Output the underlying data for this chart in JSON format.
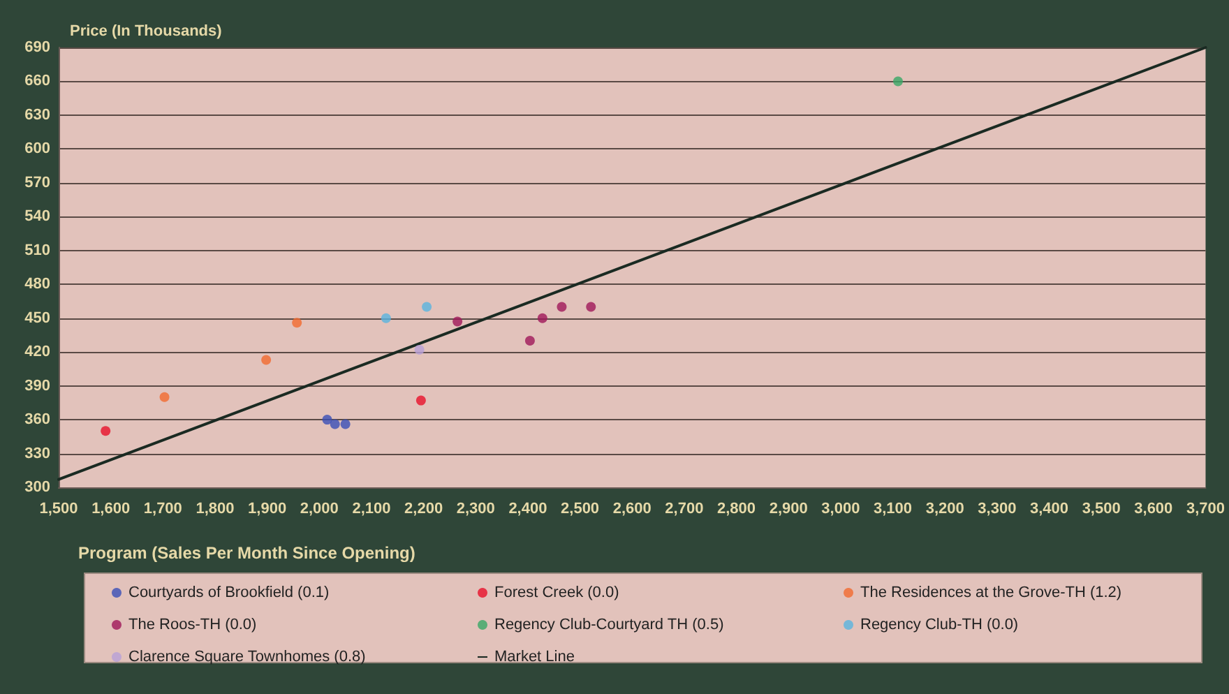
{
  "chart_data": {
    "type": "scatter",
    "ylabel": "Price (In Thousands)",
    "legend_title": "Program (Sales Per Month Since Opening)",
    "series": [
      {
        "name": "Courtyards of Brookfield (0.1)",
        "color": "#3a4fb8",
        "x": [
          2015,
          2030,
          2050
        ],
        "values": [
          360,
          356,
          356
        ],
        "marker": "circle"
      },
      {
        "name": "Forest Creek (0.0)",
        "color": "#e8102a",
        "x": [
          1590,
          2195
        ],
        "values": [
          350,
          377
        ],
        "marker": "circle"
      },
      {
        "name": "The Residences at the Grove-TH (1.2)",
        "color": "#f26a30",
        "x": [
          1703,
          1898,
          1957
        ],
        "values": [
          380,
          413,
          446
        ],
        "marker": "circle"
      },
      {
        "name": "The Roos-TH (0.0)",
        "color": "#a0185a",
        "x": [
          2265,
          2404,
          2428,
          2465,
          2521
        ],
        "values": [
          447,
          430,
          450,
          460,
          460
        ],
        "marker": "circle"
      },
      {
        "name": "Regency Club-Courtyard TH (0.5)",
        "color": "#3aa867",
        "x": [
          3110
        ],
        "values": [
          660
        ],
        "marker": "circle"
      },
      {
        "name": "Regency Club-TH (0.0)",
        "color": "#5ab4e0",
        "x": [
          2128,
          2206
        ],
        "values": [
          450,
          460
        ],
        "marker": "circle"
      },
      {
        "name": "Clarence Square Townhomes (0.8)",
        "color": "#b8a0d8",
        "x": [
          2192
        ],
        "values": [
          422
        ],
        "marker": "circle"
      },
      {
        "name": "Market Line",
        "type": "line",
        "color": "#1a2a22",
        "x": [
          1500,
          3700
        ],
        "values": [
          307,
          690
        ],
        "marker": "none"
      }
    ],
    "xlim": [
      1500,
      3700
    ],
    "xticks": [
      {
        "value": 1500,
        "label": "1,500"
      },
      {
        "value": 1600,
        "label": "1,600"
      },
      {
        "value": 1700,
        "label": "1,700"
      },
      {
        "value": 1800,
        "label": "1,800"
      },
      {
        "value": 1900,
        "label": "1,900"
      },
      {
        "value": 2000,
        "label": "2,000"
      },
      {
        "value": 2100,
        "label": "2,100"
      },
      {
        "value": 2200,
        "label": "2,200"
      },
      {
        "value": 2300,
        "label": "2,300"
      },
      {
        "value": 2400,
        "label": "2,400"
      },
      {
        "value": 2500,
        "label": "2,500"
      },
      {
        "value": 2600,
        "label": "2,600"
      },
      {
        "value": 2700,
        "label": "2,700"
      },
      {
        "value": 2800,
        "label": "2,800"
      },
      {
        "value": 2900,
        "label": "2,900"
      },
      {
        "value": 3000,
        "label": "3,000"
      },
      {
        "value": 3100,
        "label": "3,100"
      },
      {
        "value": 3200,
        "label": "3,200"
      },
      {
        "value": 3300,
        "label": "3,300"
      },
      {
        "value": 3400,
        "label": "3,400"
      },
      {
        "value": 3500,
        "label": "3,500"
      },
      {
        "value": 3600,
        "label": "3,600"
      },
      {
        "value": 3700,
        "label": "3,700"
      }
    ],
    "ylim": [
      300,
      690
    ],
    "yticks": [
      300,
      330,
      360,
      390,
      420,
      450,
      480,
      510,
      540,
      570,
      600,
      630,
      660,
      690
    ],
    "grid": "y",
    "legend": "bottom",
    "line_style": "solid"
  }
}
